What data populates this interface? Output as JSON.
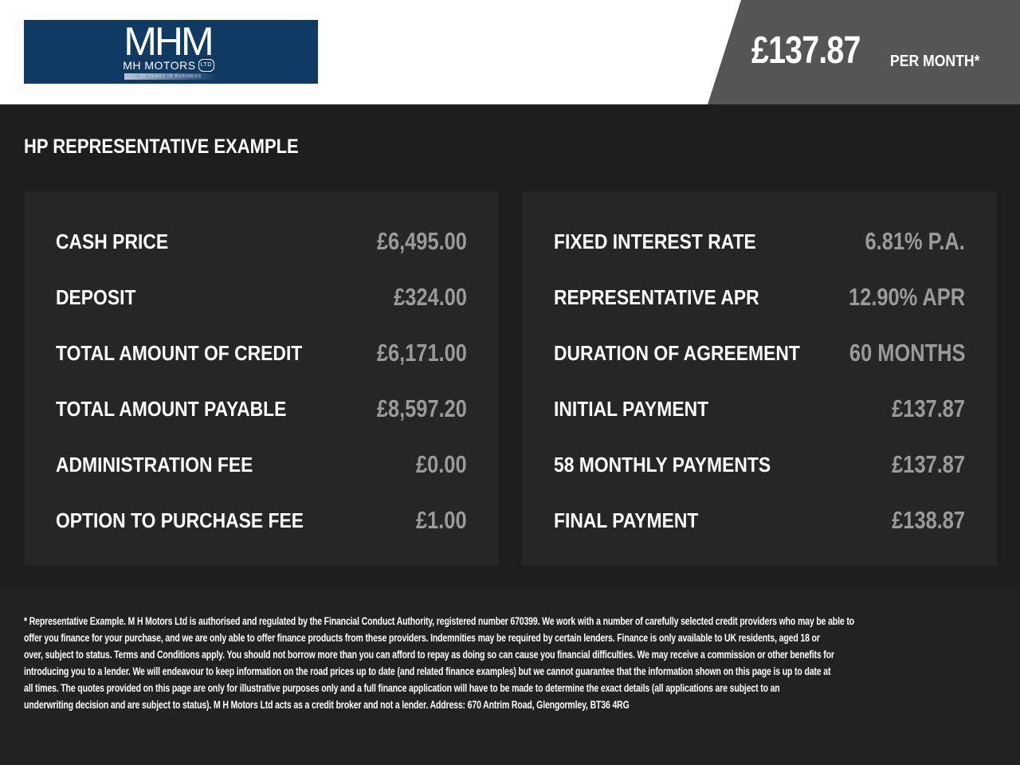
{
  "logo": {
    "mark": "MHM",
    "name": "MH MOTORS",
    "ltd": "LTD",
    "years": "30 YEARS IN BUSINESS"
  },
  "header": {
    "price": "£137.87",
    "per_month": "PER MONTH*"
  },
  "title": "HP REPRESENTATIVE EXAMPLE",
  "left_rows": [
    {
      "label": "CASH PRICE",
      "value": "£6,495.00"
    },
    {
      "label": "DEPOSIT",
      "value": "£324.00"
    },
    {
      "label": "TOTAL AMOUNT OF CREDIT",
      "value": "£6,171.00"
    },
    {
      "label": "TOTAL AMOUNT PAYABLE",
      "value": "£8,597.20"
    },
    {
      "label": "ADMINISTRATION FEE",
      "value": "£0.00"
    },
    {
      "label": "OPTION TO PURCHASE FEE",
      "value": "£1.00"
    }
  ],
  "right_rows": [
    {
      "label": "FIXED INTEREST RATE",
      "value": "6.81% P.A."
    },
    {
      "label": "REPRESENTATIVE APR",
      "value": "12.90% APR"
    },
    {
      "label": "DURATION OF AGREEMENT",
      "value": "60 MONTHS"
    },
    {
      "label": "INITIAL PAYMENT",
      "value": "£137.87"
    },
    {
      "label": "58 MONTHLY PAYMENTS",
      "value": "£137.87"
    },
    {
      "label": "FINAL PAYMENT",
      "value": "£138.87"
    }
  ],
  "disclaimer_lines": [
    "* Representative Example. M H Motors Ltd is authorised and regulated by the Financial Conduct Authority, registered number 670399. We work with a number of carefully selected credit providers who may be able to",
    "offer you finance for your purchase, and we are only able to offer finance products from these providers. Indemnities may be required by certain lenders. Finance is only available to UK residents, aged 18 or",
    "over, subject to status. Terms and Conditions apply. You should not borrow more than you can afford to repay as doing so can cause you financial difficulties. We may receive a commission or other benefits for",
    "introducing you to a lender. We will endeavour to keep information on the road prices up to date (and related finance examples) but we cannot guarantee that the information shown on this page is up to date at",
    "all times. The quotes provided on this page are only for illustrative purposes only and a full finance application will have to be made to determine the exact details (all applications are subject to an",
    "underwriting decision and are subject to status). M H Motors Ltd acts as a credit broker and not a lender. Address: 670 Antrim Road, Glengormley, BT36 4RG"
  ]
}
